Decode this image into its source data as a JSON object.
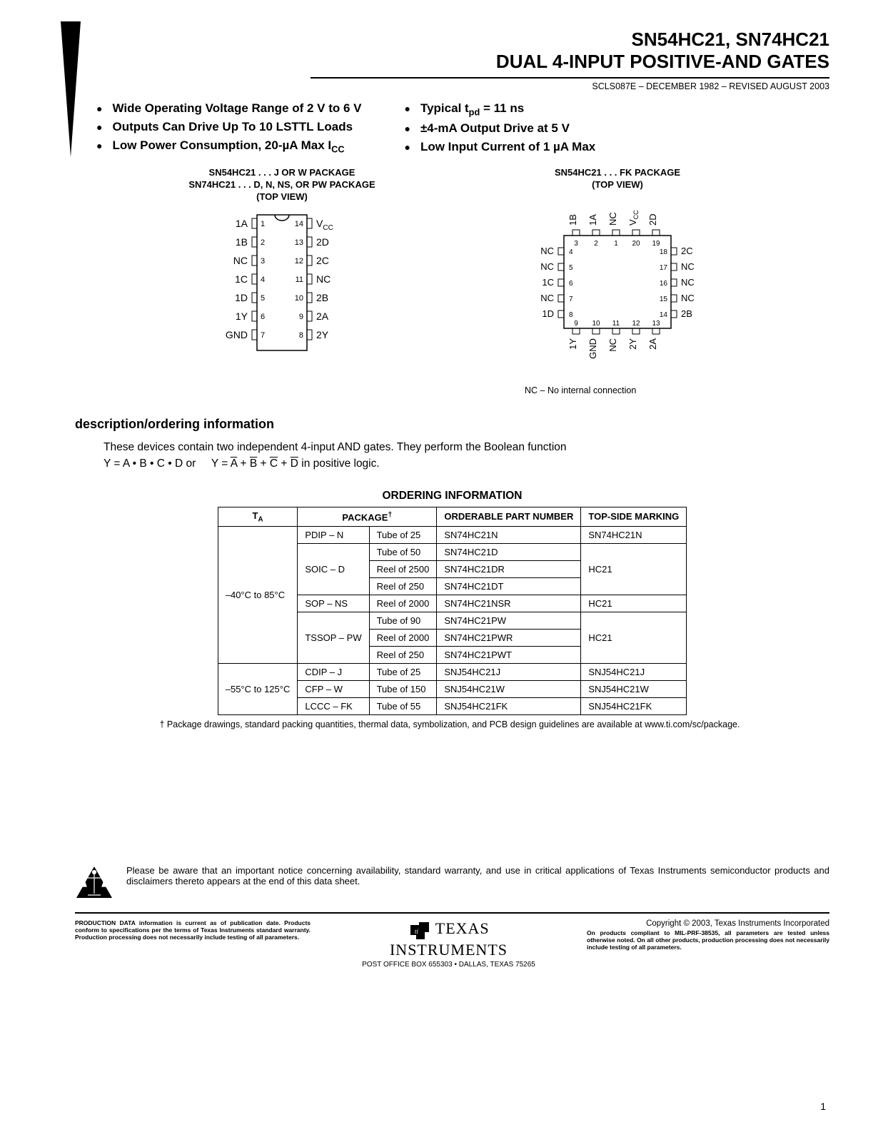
{
  "header": {
    "line1": "SN54HC21, SN74HC21",
    "line2": "DUAL 4-INPUT POSITIVE-AND GATES",
    "revision": "SCLS087E – DECEMBER 1982 – REVISED AUGUST 2003"
  },
  "bullets_left": [
    "Wide Operating Voltage Range of 2 V to 6 V",
    "Outputs Can Drive Up To 10 LSTTL Loads",
    "Low Power Consumption, 20-µA Max I"
  ],
  "bullets_left_icc_sub": "CC",
  "bullets_right": [
    "Typical t",
    "±4-mA Output Drive at 5 V",
    "Low Input Current of 1 µA Max"
  ],
  "bullets_right_tpd_sub": "pd",
  "bullets_right_tpd_tail": " = 11 ns",
  "dip_package": {
    "h1": "SN54HC21 . . . J OR W PACKAGE",
    "h2": "SN74HC21 . . . D, N, NS, OR PW PACKAGE",
    "h3": "(TOP VIEW)",
    "left_labels": [
      "1A",
      "1B",
      "NC",
      "1C",
      "1D",
      "1Y",
      "GND"
    ],
    "right_labels": [
      "V",
      "2D",
      "2C",
      "NC",
      "2B",
      "2A",
      "2Y"
    ],
    "vcc_sub": "CC",
    "left_nums": [
      1,
      2,
      3,
      4,
      5,
      6,
      7
    ],
    "right_nums": [
      14,
      13,
      12,
      11,
      10,
      9,
      8
    ]
  },
  "fk_package": {
    "h1": "SN54HC21 . . . FK PACKAGE",
    "h2": "(TOP VIEW)",
    "top_labels": [
      "1B",
      "1A",
      "NC",
      "V",
      "2D"
    ],
    "vcc_sub": "CC",
    "left_labels": [
      "NC",
      "NC",
      "1C",
      "NC",
      "1D"
    ],
    "right_labels": [
      "2C",
      "NC",
      "NC",
      "NC",
      "2B"
    ],
    "bottom_labels": [
      "1Y",
      "GND",
      "NC",
      "2Y",
      "2A"
    ],
    "top_nums": [
      3,
      2,
      1,
      20,
      19
    ],
    "left_nums": [
      4,
      5,
      6,
      7,
      8
    ],
    "right_nums": [
      18,
      17,
      16,
      15,
      14
    ],
    "bottom_nums": [
      9,
      10,
      11,
      12,
      13
    ],
    "note": "NC – No internal connection"
  },
  "section_head": "description/ordering information",
  "desc": {
    "p1_a": "These devices contain two independent 4-input AND gates. They perform the Boolean function",
    "p1_b": "Y = A • B • C • D or",
    "p1_c": "in positive logic."
  },
  "ordering_title": "ORDERING INFORMATION",
  "ordering_cols": [
    "T",
    "PACKAGE",
    "ORDERABLE PART NUMBER",
    "TOP-SIDE MARKING"
  ],
  "ordering_ta_sub": "A",
  "ordering_dagger": "†",
  "ordering_rows_grp1_ta": "–40°C to 85°C",
  "ordering_rows_grp2_ta": "–55°C to 125°C",
  "ordering_rows": [
    {
      "pkg": "PDIP – N",
      "ship": "Tube of 25",
      "pn": "SN74HC21N",
      "mark": "SN74HC21N"
    },
    {
      "pkg": "SOIC – D",
      "ship": "Tube of 50",
      "pn": "SN74HC21D",
      "mark": "HC21"
    },
    {
      "pkg": "",
      "ship": "Reel of 2500",
      "pn": "SN74HC21DR",
      "mark": ""
    },
    {
      "pkg": "",
      "ship": "Reel of 250",
      "pn": "SN74HC21DT",
      "mark": ""
    },
    {
      "pkg": "SOP – NS",
      "ship": "Reel of 2000",
      "pn": "SN74HC21NSR",
      "mark": "HC21"
    },
    {
      "pkg": "TSSOP – PW",
      "ship": "Tube of 90",
      "pn": "SN74HC21PW",
      "mark": "HC21"
    },
    {
      "pkg": "",
      "ship": "Reel of 2000",
      "pn": "SN74HC21PWR",
      "mark": ""
    },
    {
      "pkg": "",
      "ship": "Reel of 250",
      "pn": "SN74HC21PWT",
      "mark": ""
    },
    {
      "pkg": "CDIP – J",
      "ship": "Tube of 25",
      "pn": "SNJ54HC21J",
      "mark": "SNJ54HC21J"
    },
    {
      "pkg": "CFP – W",
      "ship": "Tube of 150",
      "pn": "SNJ54HC21W",
      "mark": "SNJ54HC21W"
    },
    {
      "pkg": "LCCC – FK",
      "ship": "Tube of 55",
      "pn": "SNJ54HC21FK",
      "mark": "SNJ54HC21FK"
    }
  ],
  "ordering_footnote": "† Package drawings, standard packing quantities, thermal data, symbolization, and PCB design guidelines are available at www.ti.com/sc/package.",
  "notice": "Please be aware that an important notice concerning availability, standard warranty, and use in critical applications of Texas Instruments semiconductor products and disclaimers thereto appears at the end of this data sheet.",
  "footer": {
    "left": "PRODUCTION DATA information is current as of publication date. Products conform to specifications per the terms of Texas Instruments standard warranty. Production processing does not necessarily include testing of all parameters.",
    "copyright": "Copyright © 2003, Texas Instruments Incorporated",
    "right": "On products compliant to MIL-PRF-38535, all parameters are tested unless otherwise noted. On all other products, production processing does not necessarily include testing of all parameters.",
    "addr": "POST OFFICE BOX 655303 • DALLAS, TEXAS 75265",
    "brand1": "TEXAS",
    "brand2": "INSTRUMENTS"
  },
  "page_number": "1"
}
